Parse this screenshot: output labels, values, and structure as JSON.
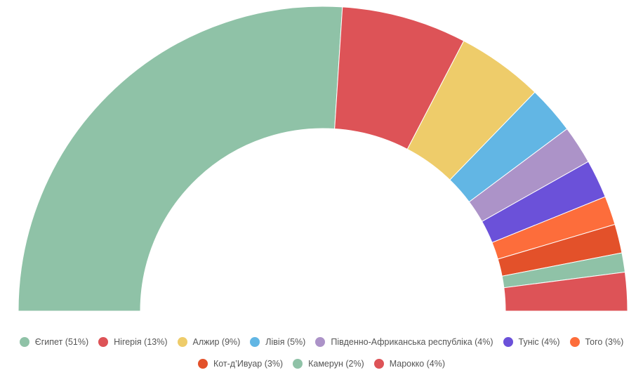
{
  "chart_data": {
    "type": "pie",
    "variant": "semicircle-donut",
    "categories": [
      "Єгипет",
      "Нігерія",
      "Алжир",
      "Лівія",
      "Південно-Африканська республіка",
      "Туніс",
      "Того",
      "Кот-д'Ивуар",
      "Камерун",
      "Марокко"
    ],
    "values": [
      51,
      13,
      9,
      5,
      4,
      4,
      3,
      3,
      2,
      4
    ],
    "legend_labels": [
      "Єгипет (51%)",
      "Нігерія (13%)",
      "Алжир (9%)",
      "Лівія (5%)",
      "Південно-Африканська республіка (4%)",
      "Туніс (4%)",
      "Того (3%)",
      "Кот-д’Ивуар (3%)",
      "Камерун (2%)",
      "Марокко (4%)"
    ],
    "colors": [
      "#8fc2a7",
      "#dd5357",
      "#eecc6a",
      "#62b6e4",
      "#ac93c8",
      "#6b51d9",
      "#fd6d3b",
      "#e3512a",
      "#8fc2a7",
      "#dd5357"
    ],
    "legend_placement": "bottom"
  }
}
